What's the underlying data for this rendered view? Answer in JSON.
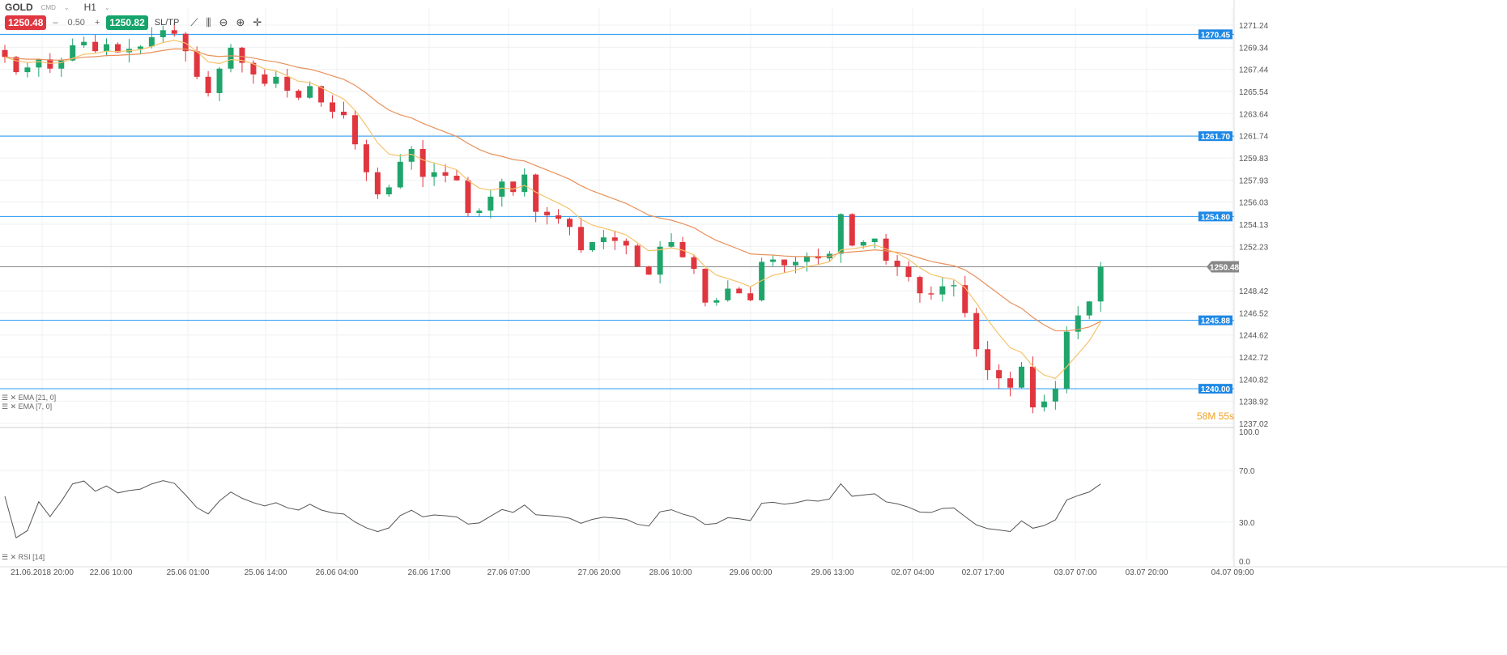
{
  "instrument": {
    "symbol": "GOLD",
    "type": "CMD",
    "timeframe": "H1"
  },
  "trade": {
    "sell_price": "1250.48",
    "lot_minus": "–",
    "lot": "0.50",
    "lot_plus": "+",
    "buy_price": "1250.82",
    "sltp": "SL/TP"
  },
  "tools": [
    {
      "icon": "line-chart-icon",
      "glyph": "⟋"
    },
    {
      "icon": "candles-icon",
      "glyph": "⫼"
    },
    {
      "icon": "zoom-out-icon",
      "glyph": "⊖"
    },
    {
      "icon": "zoom-in-icon",
      "glyph": "⊕"
    },
    {
      "icon": "crosshair-icon",
      "glyph": "✛"
    }
  ],
  "indicators": {
    "ema21": "EMA [21, 0]",
    "ema7": "EMA [7, 0]",
    "rsi": "RSI [14]"
  },
  "timer": "58M 55s",
  "colors": {
    "up": "#1fa56b",
    "down": "#e0363f",
    "level": "#2196f3",
    "ema21": "#e8905a",
    "ema7": "#f5c36a",
    "rsi": "#555555"
  },
  "chart_data": {
    "type": "candlestick",
    "x_labels": [
      "21.06.2018 20:00",
      "22.06 10:00",
      "25.06 01:00",
      "25.06 14:00",
      "26.06 04:00",
      "26.06 17:00",
      "27.06 07:00",
      "27.06 20:00",
      "28.06 10:00",
      "29.06 00:00",
      "29.06 13:00",
      "02.07 04:00",
      "02.07 17:00",
      "03.07 07:00",
      "03.07 20:00",
      "04.07 09:00"
    ],
    "y_ticks": [
      "1271.24",
      "1269.34",
      "1267.44",
      "1265.54",
      "1263.64",
      "1261.74",
      "1259.83",
      "1257.93",
      "1256.03",
      "1254.13",
      "1252.23",
      "1248.42",
      "1246.52",
      "1244.62",
      "1242.72",
      "1240.82",
      "1238.92",
      "1237.02"
    ],
    "ylim": [
      1237.02,
      1271.24
    ],
    "levels": [
      "1270.45",
      "1261.70",
      "1254.80",
      "1245.88",
      "1240.00"
    ],
    "current_price": "1250.48",
    "closes": [
      1268.5,
      1267.2,
      1267.6,
      1268.3,
      1267.5,
      1268.2,
      1269.5,
      1269.8,
      1269.0,
      1269.6,
      1268.9,
      1269.2,
      1269.4,
      1270.2,
      1270.8,
      1270.5,
      1269.0,
      1266.8,
      1265.4,
      1267.5,
      1269.3,
      1268.0,
      1267.0,
      1266.2,
      1266.8,
      1265.6,
      1265.0,
      1266.0,
      1264.6,
      1263.8,
      1263.5,
      1261.0,
      1258.6,
      1256.7,
      1257.3,
      1259.5,
      1260.6,
      1258.2,
      1258.6,
      1258.3,
      1257.9,
      1255.1,
      1255.3,
      1256.5,
      1257.8,
      1256.9,
      1258.4,
      1255.2,
      1254.9,
      1254.6,
      1253.9,
      1251.9,
      1252.6,
      1253.0,
      1252.7,
      1252.3,
      1250.5,
      1249.8,
      1252.2,
      1252.6,
      1251.3,
      1250.3,
      1247.4,
      1247.6,
      1248.6,
      1248.2,
      1247.6,
      1250.9,
      1251.1,
      1250.6,
      1250.9,
      1251.4,
      1251.2,
      1251.6,
      1255.0,
      1252.3,
      1252.6,
      1252.9,
      1251.0,
      1250.5,
      1249.6,
      1248.2,
      1248.1,
      1248.8,
      1248.9,
      1246.5,
      1243.4,
      1241.6,
      1240.9,
      1240.1,
      1241.9,
      1238.4,
      1238.9,
      1240.0,
      1244.9,
      1246.3,
      1247.5,
      1250.48
    ],
    "rsi": {
      "ticks": [
        "100.0",
        "70.0",
        "30.0",
        "0.0"
      ],
      "ylim": [
        0,
        100
      ]
    }
  }
}
